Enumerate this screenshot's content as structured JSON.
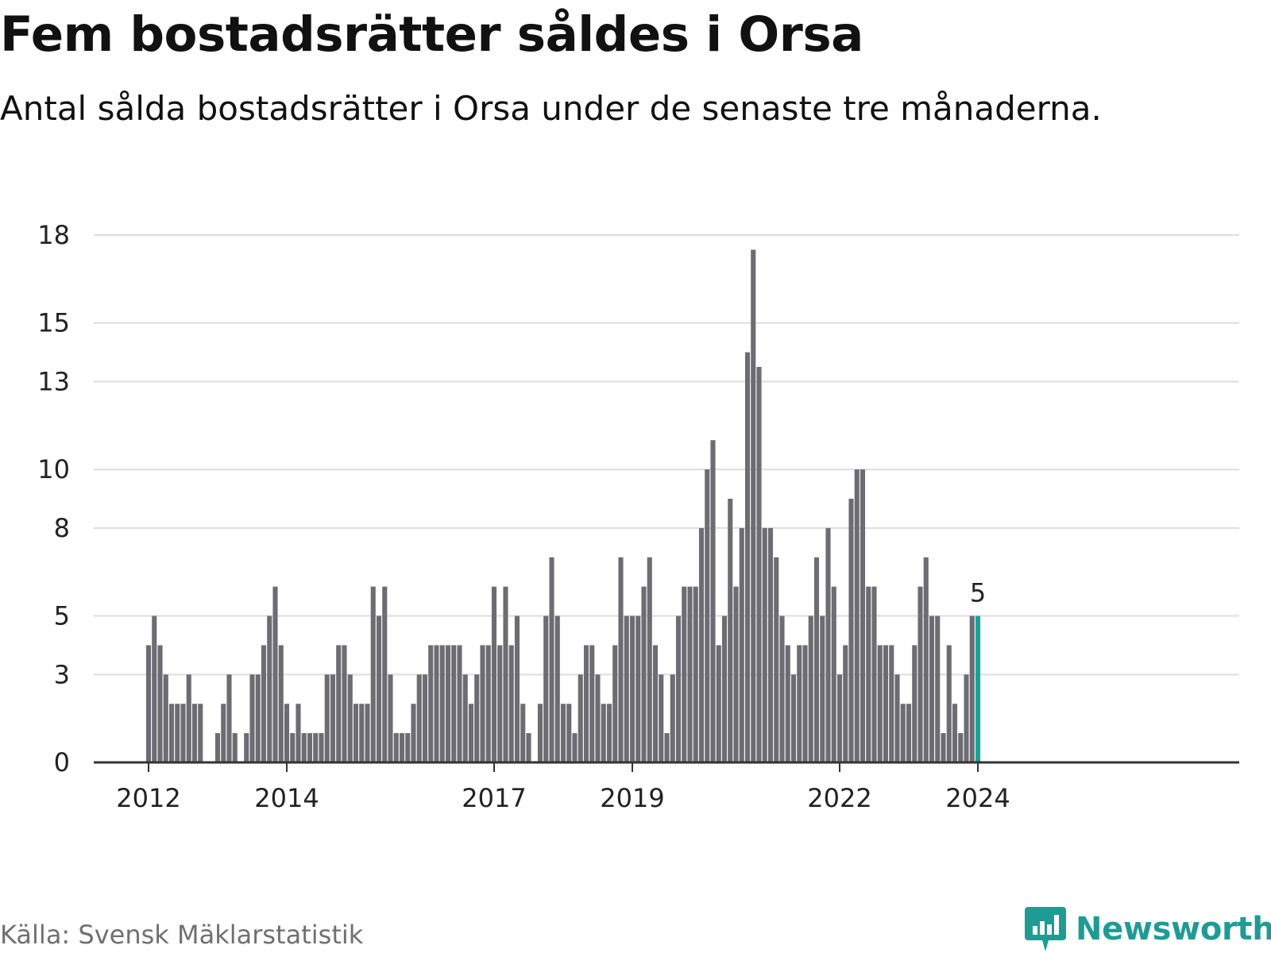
{
  "header": {
    "title": "Fem bostadsrätter såldes i Orsa",
    "subtitle": "Antal sålda bostadsrätter i Orsa under de senaste tre månaderna."
  },
  "footer": {
    "source": "Källa: Svensk Mäklarstatistik",
    "brand": "Newsworthy",
    "brand_icon": "bar-chart-speech-bubble-icon"
  },
  "colors": {
    "bar": "#6c6c72",
    "highlight": "#12a599",
    "grid": "#dedede",
    "brand": "#1e9c94"
  },
  "chart_data": {
    "type": "bar",
    "title": "Fem bostadsrätter såldes i Orsa",
    "subtitle": "Antal sålda bostadsrätter i Orsa under de senaste tre månaderna.",
    "xlabel": "",
    "ylabel": "",
    "ylim": [
      0,
      18
    ],
    "y_ticks": [
      0,
      3,
      5,
      8,
      10,
      13,
      15,
      18
    ],
    "x_ticks": [
      "2012",
      "2014",
      "2017",
      "2019",
      "2022",
      "2024"
    ],
    "grid": true,
    "start": "2012-01",
    "interval": "monthly, rolling 3-month sum",
    "highlight_label": "5",
    "values": [
      4,
      5,
      4,
      3,
      2,
      2,
      2,
      3,
      2,
      2,
      0,
      0,
      1,
      2,
      3,
      1,
      0,
      1,
      3,
      3,
      4,
      5,
      6,
      4,
      2,
      1,
      2,
      1,
      1,
      1,
      1,
      3,
      3,
      4,
      4,
      3,
      2,
      2,
      2,
      6,
      5,
      6,
      3,
      1,
      1,
      1,
      2,
      3,
      3,
      4,
      4,
      4,
      4,
      4,
      4,
      3,
      2,
      3,
      4,
      4,
      6,
      4,
      6,
      4,
      5,
      2,
      1,
      0,
      2,
      5,
      7,
      5,
      2,
      2,
      1,
      3,
      4,
      4,
      3,
      2,
      2,
      4,
      7,
      5,
      5,
      5,
      6,
      7,
      4,
      3,
      1,
      3,
      5,
      6,
      6,
      6,
      8,
      10,
      11,
      4,
      5,
      9,
      6,
      8,
      14,
      17.5,
      13.5,
      8,
      8,
      7,
      5,
      4,
      3,
      4,
      4,
      5,
      7,
      5,
      8,
      6,
      3,
      4,
      9,
      10,
      10,
      6,
      6,
      4,
      4,
      4,
      3,
      2,
      2,
      4,
      6,
      7,
      5,
      5,
      1,
      4,
      2,
      1,
      3,
      5,
      5
    ]
  }
}
